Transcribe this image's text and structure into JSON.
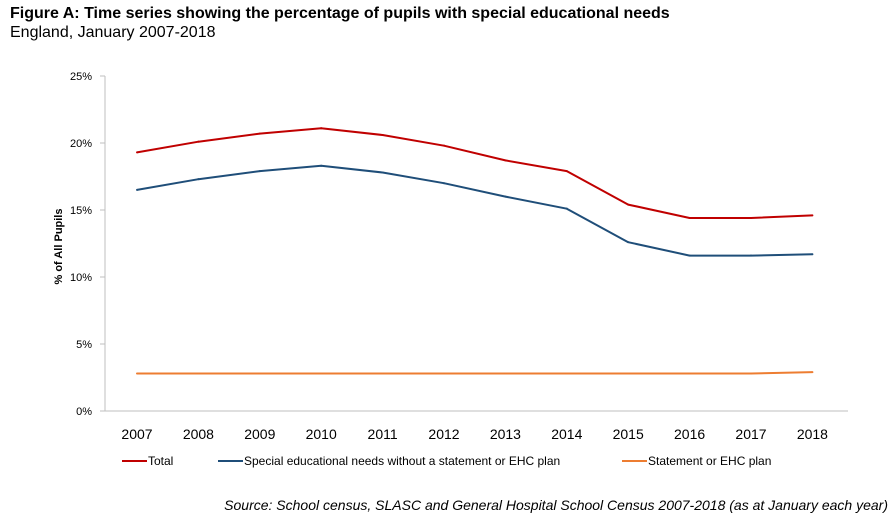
{
  "figure": {
    "title": "Figure A: Time series showing the percentage of pupils with special educational needs",
    "subtitle": "England, January 2007-2018",
    "source": "Source: School census, SLASC and General Hospital School Census 2007-2018 (as at January each year)"
  },
  "chart_data": {
    "type": "line",
    "categories": [
      "2007",
      "2008",
      "2009",
      "2010",
      "2011",
      "2012",
      "2013",
      "2014",
      "2015",
      "2016",
      "2017",
      "2018"
    ],
    "ylabel": "% of All Pupils",
    "xlabel": "",
    "ylim": [
      0,
      25
    ],
    "yticks": [
      0,
      5,
      10,
      15,
      20,
      25
    ],
    "ytick_labels": [
      "0%",
      "5%",
      "10%",
      "15%",
      "20%",
      "25%"
    ],
    "grid": false,
    "legend_position": "bottom",
    "series": [
      {
        "name": "Total",
        "color": "#c00000",
        "values": [
          19.3,
          20.1,
          20.7,
          21.1,
          20.6,
          19.8,
          18.7,
          17.9,
          15.4,
          14.4,
          14.4,
          14.6
        ]
      },
      {
        "name": "Special educational needs without a statement or EHC plan",
        "color": "#1f4e79",
        "values": [
          16.5,
          17.3,
          17.9,
          18.3,
          17.8,
          17.0,
          16.0,
          15.1,
          12.6,
          11.6,
          11.6,
          11.7
        ]
      },
      {
        "name": "Statement or EHC plan",
        "color": "#ed7d31",
        "values": [
          2.8,
          2.8,
          2.8,
          2.8,
          2.8,
          2.8,
          2.8,
          2.8,
          2.8,
          2.8,
          2.8,
          2.9
        ]
      }
    ]
  }
}
